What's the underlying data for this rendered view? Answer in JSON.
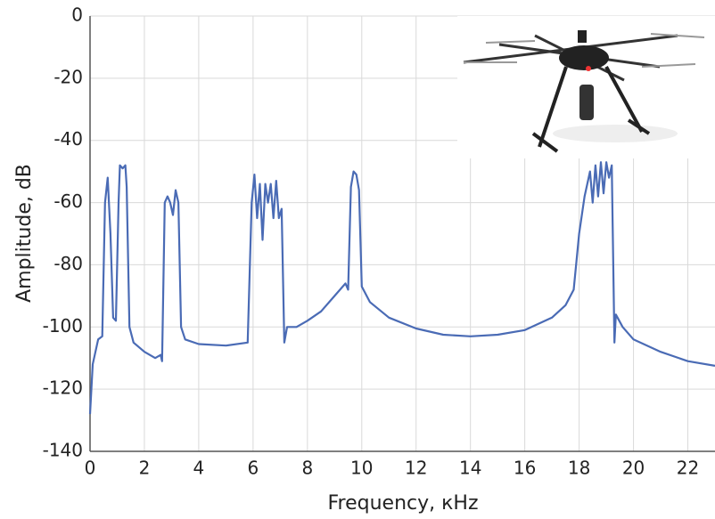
{
  "chart_data": {
    "type": "line",
    "xlabel": "Frequency, кHz",
    "ylabel": "Amplitude, dB",
    "color": "#4a6bb5",
    "grid": true,
    "xlim": [
      0,
      23
    ],
    "ylim": [
      -140,
      0
    ],
    "xticks": [
      0,
      2,
      4,
      6,
      8,
      10,
      12,
      14,
      16,
      18,
      20,
      22
    ],
    "yticks": [
      0,
      -20,
      -40,
      -60,
      -80,
      -100,
      -120,
      -140
    ],
    "x": [
      0,
      0.1,
      0.3,
      0.45,
      0.55,
      0.65,
      0.75,
      0.85,
      0.95,
      1.05,
      1.1,
      1.2,
      1.3,
      1.35,
      1.45,
      1.6,
      2,
      2.4,
      2.6,
      2.65,
      2.75,
      2.85,
      2.95,
      3.05,
      3.15,
      3.25,
      3.35,
      3.5,
      4,
      5,
      5.8,
      5.95,
      6.05,
      6.15,
      6.25,
      6.35,
      6.45,
      6.55,
      6.65,
      6.75,
      6.85,
      6.95,
      7.05,
      7.15,
      7.25,
      7.6,
      8,
      8.5,
      9,
      9.4,
      9.5,
      9.6,
      9.7,
      9.8,
      9.9,
      10,
      10.3,
      11,
      12,
      13,
      14,
      15,
      16,
      17,
      17.5,
      17.8,
      18,
      18.2,
      18.4,
      18.5,
      18.6,
      18.7,
      18.8,
      18.9,
      19,
      19.1,
      19.2,
      19.3,
      19.35,
      19.6,
      20,
      21,
      22,
      23
    ],
    "values": [
      -128,
      -112,
      -104,
      -103,
      -60,
      -52,
      -70,
      -97,
      -98,
      -60,
      -48,
      -49,
      -48,
      -55,
      -100,
      -105,
      -108,
      -110,
      -109,
      -111,
      -60,
      -58,
      -60,
      -64,
      -56,
      -60,
      -100,
      -104,
      -105.5,
      -106,
      -105,
      -60,
      -51,
      -65,
      -54,
      -72,
      -54,
      -60,
      -54,
      -65,
      -53,
      -65,
      -62,
      -105,
      -100,
      -100,
      -98,
      -95,
      -90,
      -86,
      -88,
      -55,
      -50,
      -51,
      -56,
      -87,
      -92,
      -97,
      -100.5,
      -102.5,
      -103,
      -102.5,
      -101,
      -97,
      -93,
      -88,
      -70,
      -58,
      -50,
      -60,
      -48,
      -58,
      -47,
      -57,
      -47,
      -52,
      -48,
      -105,
      -96,
      -100,
      -104,
      -108,
      -111,
      -112.5
    ]
  }
}
